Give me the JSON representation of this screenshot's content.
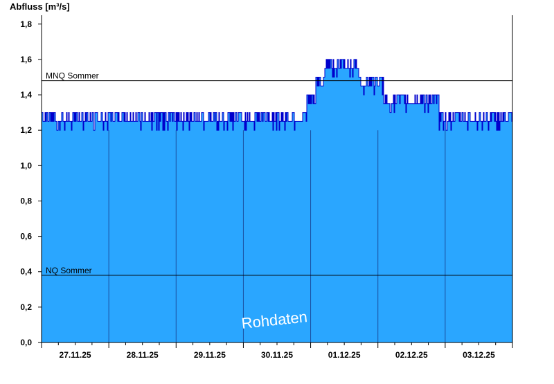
{
  "chart_data": {
    "type": "area",
    "ylabel": "Abfluss [m³/s]",
    "ylim": [
      0,
      1.85
    ],
    "yticks": [
      "0,0",
      "0,2",
      "0,4",
      "0,6",
      "0,8",
      "1,0",
      "1,2",
      "1,4",
      "1,6",
      "1,8"
    ],
    "ytick_values": [
      0,
      0.2,
      0.4,
      0.6,
      0.8,
      1.0,
      1.2,
      1.4,
      1.6,
      1.8
    ],
    "categories": [
      "27.11.25",
      "28.11.25",
      "29.11.25",
      "30.11.25",
      "01.12.25",
      "02.12.25",
      "03.12.25"
    ],
    "grid": false,
    "fill_color": "#2aa6ff",
    "line_color": "#0000cc",
    "series": [
      {
        "x": [
          0,
          0.5,
          1.0,
          1.5,
          2.0,
          2.5,
          3.0,
          3.5,
          3.9,
          4.0,
          4.1,
          4.25,
          4.5,
          4.75,
          4.9,
          5.0,
          5.25,
          5.5,
          5.75,
          6.0,
          6.5,
          7.0
        ],
        "values": [
          1.26,
          1.25,
          1.25,
          1.25,
          1.25,
          1.25,
          1.25,
          1.26,
          1.28,
          1.34,
          1.42,
          1.53,
          1.55,
          1.49,
          1.47,
          1.41,
          1.38,
          1.35,
          1.33,
          1.28,
          1.26,
          1.26
        ]
      }
    ],
    "reference_lines": [
      {
        "label": "MNQ Sommer",
        "value": 1.48
      },
      {
        "label": "NQ Sommer",
        "value": 0.38
      }
    ],
    "watermark": "Rohdaten"
  }
}
